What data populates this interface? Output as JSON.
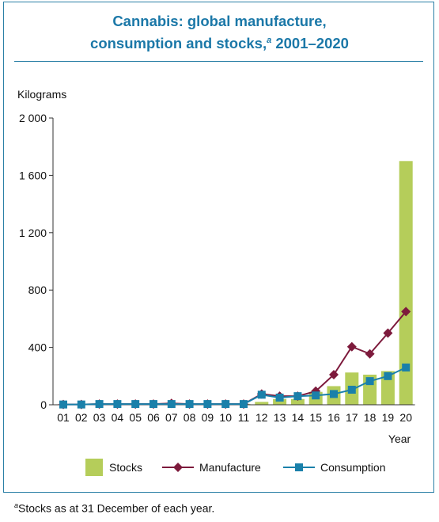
{
  "chart_data": {
    "type": "bar",
    "title_line1": "Cannabis: global manufacture,",
    "title_line2": "consumption and stocks,",
    "title_sup": "a",
    "title_years": " 2001–2020",
    "ylabel": "Kilograms",
    "xlabel": "Year",
    "ylim": [
      0,
      2000
    ],
    "yticks": [
      0,
      400,
      800,
      1200,
      1600,
      2000
    ],
    "ytick_labels": [
      "0",
      "400",
      "800",
      "1 200",
      "1 600",
      "2 000"
    ],
    "categories": [
      "01",
      "02",
      "03",
      "04",
      "05",
      "06",
      "07",
      "08",
      "09",
      "10",
      "11",
      "12",
      "13",
      "14",
      "15",
      "16",
      "17",
      "18",
      "19",
      "20"
    ],
    "series": [
      {
        "name": "Stocks",
        "type": "bar",
        "color": "#b5cd5a",
        "values": [
          3,
          3,
          5,
          5,
          5,
          5,
          10,
          5,
          5,
          5,
          5,
          20,
          40,
          40,
          90,
          130,
          225,
          210,
          235,
          1700
        ]
      },
      {
        "name": "Manufacture",
        "type": "line",
        "color": "#7d1a3c",
        "marker": "diamond",
        "values": [
          2,
          2,
          5,
          5,
          5,
          5,
          10,
          5,
          5,
          5,
          5,
          75,
          60,
          60,
          95,
          210,
          405,
          355,
          500,
          650
        ]
      },
      {
        "name": "Consumption",
        "type": "line",
        "color": "#1a80aa",
        "marker": "square",
        "values": [
          2,
          2,
          5,
          5,
          5,
          5,
          5,
          5,
          5,
          5,
          5,
          70,
          50,
          60,
          65,
          75,
          105,
          165,
          200,
          260
        ]
      }
    ],
    "legend_placement": "bottom",
    "grid": false
  },
  "footnote": {
    "sup": "a",
    "text": "Stocks as at 31 December of each year."
  }
}
